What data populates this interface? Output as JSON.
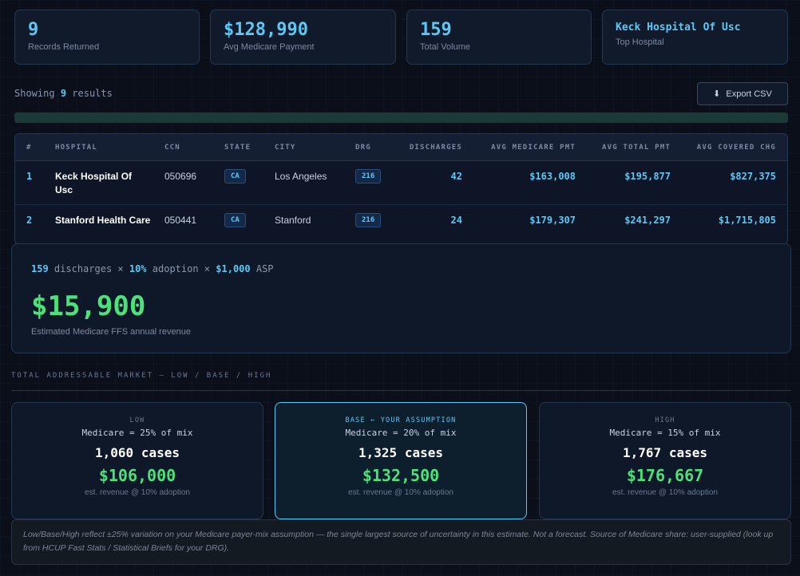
{
  "kpis": [
    {
      "value": "9",
      "label": "Records Returned"
    },
    {
      "value": "$128,990",
      "label": "Avg Medicare Payment"
    },
    {
      "value": "159",
      "label": "Total Volume"
    },
    {
      "value": "Keck Hospital Of Usc",
      "label": "Top Hospital"
    }
  ],
  "results": {
    "prefix": "Showing",
    "count": "9",
    "suffix": "results"
  },
  "export": {
    "icon": "download-icon",
    "label": "Export CSV",
    "glyph": "⬇"
  },
  "progress": {
    "fraction": 1.0
  },
  "table": {
    "headers": [
      "#",
      "HOSPITAL",
      "CCN",
      "STATE",
      "CITY",
      "DRG",
      "DISCHARGES",
      "AVG MEDICARE PMT",
      "AVG TOTAL PMT",
      "AVG COVERED CHG"
    ],
    "rows": [
      {
        "rank": "1",
        "hospital": "Keck Hospital Of Usc",
        "ccn": "050696",
        "state": "CA",
        "city": "Los Angeles",
        "drg": "216",
        "discharges": "42",
        "avg_medicare": "$163,008",
        "avg_total": "$195,877",
        "avg_covered": "$827,375"
      },
      {
        "rank": "2",
        "hospital": "Stanford Health Care",
        "ccn": "050441",
        "state": "CA",
        "city": "Stanford",
        "drg": "216",
        "discharges": "24",
        "avg_medicare": "$179,307",
        "avg_total": "$241,297",
        "avg_covered": "$1,715,805"
      }
    ]
  },
  "revenue": {
    "discharges": "159",
    "discharges_text": "discharges ×",
    "adoption": "10%",
    "adoption_text": "adoption ×",
    "asp": "$1,000",
    "asp_text": "ASP",
    "estimate": "$15,900",
    "label": "Estimated Medicare FFS annual revenue"
  },
  "tam": {
    "title": "TOTAL ADDRESSABLE MARKET — LOW / BASE / HIGH",
    "scenarios": [
      {
        "tag": "LOW",
        "mix": "Medicare = 25% of mix",
        "cases": "1,060 cases",
        "revenue": "$106,000",
        "note": "est. revenue @ 10% adoption"
      },
      {
        "tag": "BASE ← YOUR ASSUMPTION",
        "mix": "Medicare = 20% of mix",
        "cases": "1,325 cases",
        "revenue": "$132,500",
        "note": "est. revenue @ 10% adoption"
      },
      {
        "tag": "HIGH",
        "mix": "Medicare = 15% of mix",
        "cases": "1,767 cases",
        "revenue": "$176,667",
        "note": "est. revenue @ 10% adoption"
      }
    ]
  },
  "footnote": "Low/Base/High reflect ±25% variation on your Medicare payer-mix assumption — the single largest source of uncertainty in this estimate. Not a forecast. Source of Medicare share: user-supplied (look up from HCUP Fast Stats / Statistical Briefs for your DRG).",
  "colors": {
    "accent": "#5cc8f5",
    "positive": "#4ee07a",
    "background": "#0a0f1a"
  }
}
